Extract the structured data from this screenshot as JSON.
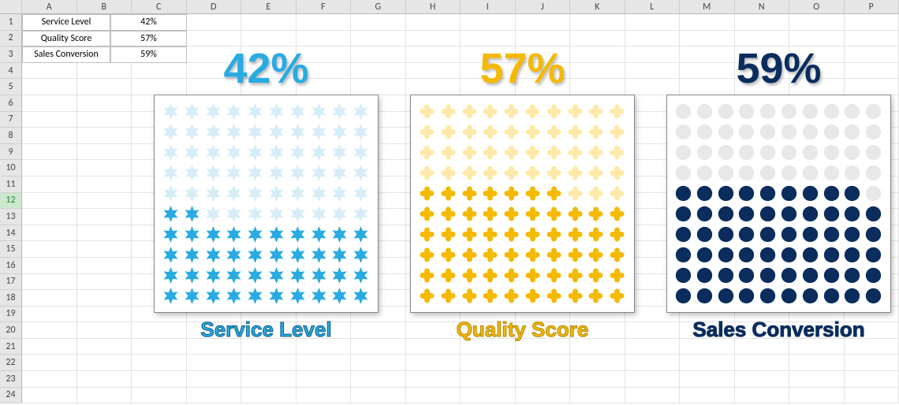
{
  "columns": [
    "A",
    "B",
    "C",
    "D",
    "E",
    "F",
    "G",
    "H",
    "I",
    "J",
    "K",
    "L",
    "M",
    "N",
    "O",
    "P"
  ],
  "row_count": 24,
  "active_row": 12,
  "table": {
    "rows": [
      {
        "label": "Service Level",
        "value": "42%"
      },
      {
        "label": "Quality Score",
        "value": "57%"
      },
      {
        "label": "Sales Conversion",
        "value": "59%"
      }
    ],
    "cell_border_color": "#bfbfbf"
  },
  "charts": [
    {
      "title": "Service Level",
      "percent": 42,
      "display": "42%",
      "shape": "star6",
      "fill_color": "#29abe2",
      "empty_color": "#d6edf8",
      "title_color": "#29abe2",
      "caption_stroke": "#0d5e8c"
    },
    {
      "title": "Quality Score",
      "percent": 57,
      "display": "57%",
      "shape": "plus",
      "fill_color": "#f5b900",
      "empty_color": "#ffe9a8",
      "title_color": "#f5b900",
      "caption_stroke": "#b38600"
    },
    {
      "title": "Sales Conversion",
      "percent": 59,
      "display": "59%",
      "shape": "circle",
      "fill_color": "#0a2d5e",
      "empty_color": "#e8e8e8",
      "title_color": "#0a2d5e",
      "caption_stroke": "#0a2d5e"
    }
  ],
  "style": {
    "panel_border": "#888888",
    "panel_bg": "#ffffff",
    "big_fontsize": 54,
    "caption_fontsize": 26,
    "grid_cols": 10,
    "grid_rows": 10,
    "sheet_gridline": "#e3e3e3",
    "header_bg": "#e6e6e6",
    "selection_color": "#217346"
  }
}
